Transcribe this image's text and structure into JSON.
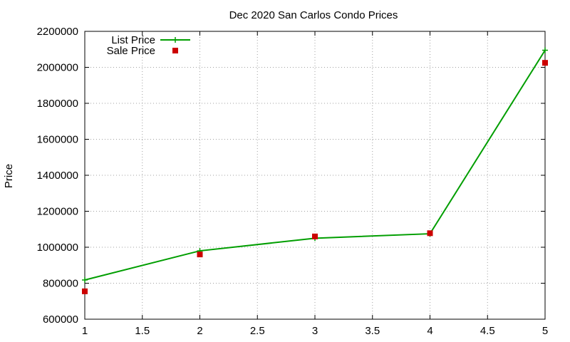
{
  "chart_data": {
    "type": "line",
    "title": "Dec 2020 San Carlos Condo Prices",
    "xlabel": "",
    "ylabel": "Price",
    "xlim": [
      1,
      5
    ],
    "ylim": [
      600000,
      2200000
    ],
    "x_ticks": [
      "1",
      "1.5",
      "2",
      "2.5",
      "3",
      "3.5",
      "4",
      "4.5",
      "5"
    ],
    "y_ticks": [
      "600000",
      "800000",
      "1000000",
      "1200000",
      "1400000",
      "1600000",
      "1800000",
      "2000000",
      "2200000"
    ],
    "grid": true,
    "legend_position": "top-left",
    "series": [
      {
        "name": "List Price",
        "style": "linespoints",
        "marker": "plus",
        "color": "#009e00",
        "x": [
          1,
          2,
          3,
          4,
          5
        ],
        "y": [
          818000,
          980000,
          1050000,
          1075000,
          2095000
        ]
      },
      {
        "name": "Sale Price",
        "style": "points",
        "marker": "square",
        "color": "#cc0000",
        "x": [
          1,
          2,
          3,
          4,
          5
        ],
        "y": [
          755000,
          960000,
          1060000,
          1078000,
          2025000
        ]
      }
    ]
  }
}
